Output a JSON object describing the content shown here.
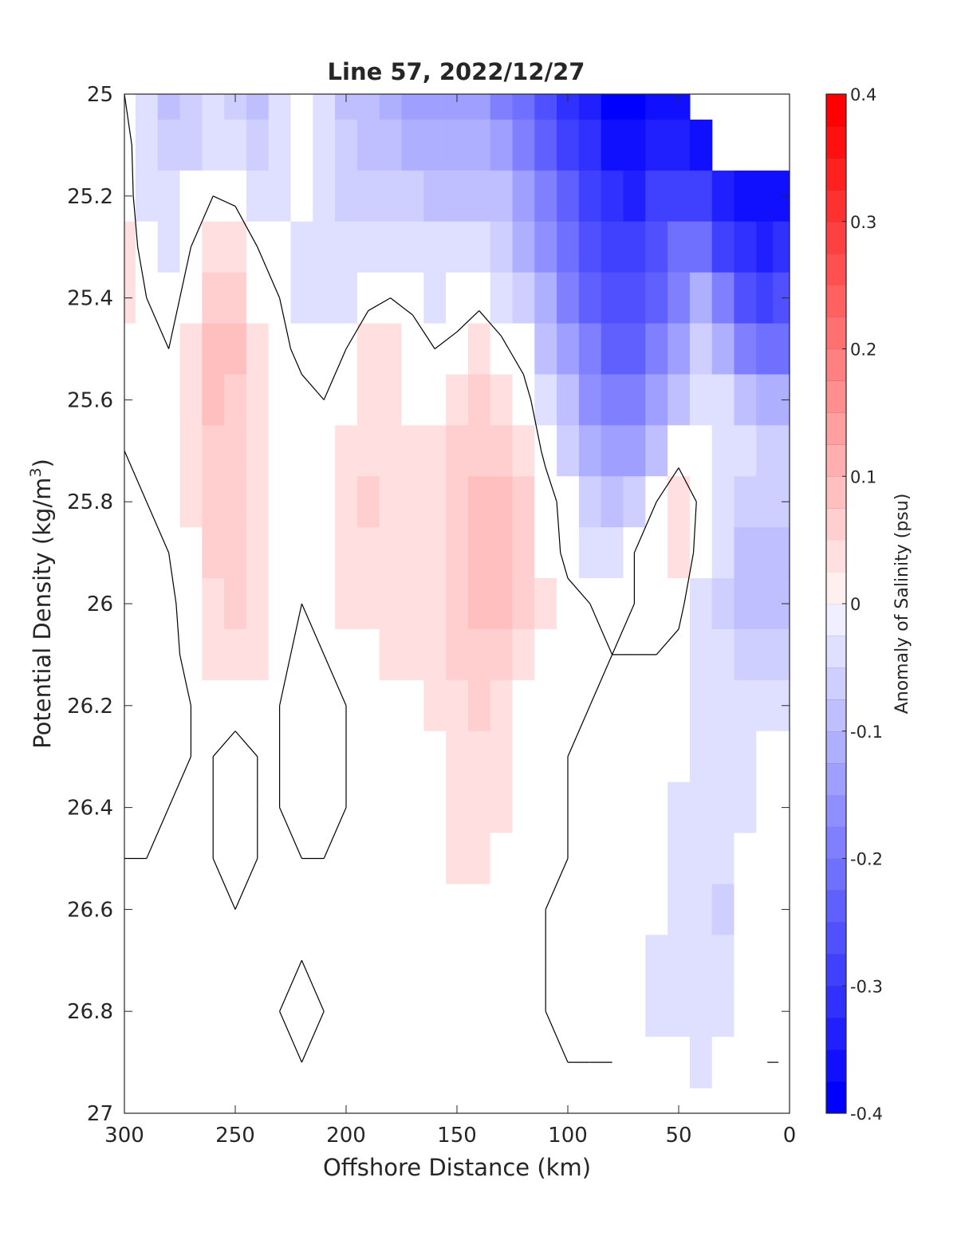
{
  "chart_data": {
    "type": "heatmap",
    "title": "Line 57, 2022/12/27",
    "xlabel": "Offshore Distance (km)",
    "ylabel_main": "Potential Density (kg/m",
    "ylabel_sup": "3",
    "ylabel_close": ")",
    "xlim": [
      300,
      0
    ],
    "ylim": [
      27,
      25
    ],
    "x_reversed": true,
    "y_reversed": true,
    "xticks": [
      300,
      250,
      200,
      150,
      100,
      50,
      0
    ],
    "xtick_labels": [
      "300",
      "250",
      "200",
      "150",
      "100",
      "50",
      "0"
    ],
    "yticks": [
      25,
      25.2,
      25.4,
      25.6,
      25.8,
      26,
      26.2,
      26.4,
      26.6,
      26.8,
      27
    ],
    "ytick_labels": [
      "25",
      "25.2",
      "25.4",
      "25.6",
      "25.8",
      "26",
      "26.2",
      "26.4",
      "26.6",
      "26.8",
      "27"
    ],
    "grid": false,
    "colorbar": {
      "label": "Anomaly of Salinity (psu)",
      "range": [
        -0.4,
        0.4
      ],
      "step": 0.025,
      "colormap": "blue-white-red",
      "ticks": [
        0.4,
        0.3,
        0.2,
        0.1,
        0,
        -0.1,
        -0.2,
        -0.3,
        -0.4
      ],
      "tick_labels": [
        "0.4",
        "0.3",
        "0.2",
        "0.1",
        "0",
        "-0.1",
        "-0.2",
        "-0.3",
        "-0.4"
      ]
    },
    "x": [
      300,
      290,
      280,
      270,
      260,
      250,
      240,
      230,
      220,
      210,
      200,
      190,
      180,
      170,
      160,
      150,
      140,
      130,
      120,
      110,
      100,
      90,
      80,
      70,
      60,
      50,
      40,
      30,
      20,
      10,
      5
    ],
    "y": [
      25,
      25.1,
      25.2,
      25.3,
      25.4,
      25.5,
      25.6,
      25.7,
      25.8,
      25.9,
      26,
      26.1,
      26.2,
      26.3,
      26.4,
      26.5,
      26.6,
      26.7,
      26.8,
      26.9
    ],
    "salinity_anomaly": [
      [
        0.0,
        -0.05,
        -0.08,
        -0.06,
        -0.05,
        -0.06,
        -0.08,
        -0.05,
        -0.02,
        -0.05,
        -0.08,
        -0.1,
        -0.12,
        -0.15,
        -0.15,
        -0.13,
        -0.15,
        -0.18,
        -0.22,
        -0.26,
        -0.31,
        -0.34,
        -0.38,
        -0.39,
        -0.37,
        -0.36,
        null,
        null,
        null,
        null,
        null
      ],
      [
        0.02,
        -0.04,
        -0.07,
        -0.06,
        -0.04,
        -0.05,
        -0.07,
        -0.04,
        -0.01,
        -0.04,
        -0.07,
        -0.09,
        -0.1,
        -0.12,
        -0.12,
        -0.11,
        -0.12,
        -0.15,
        -0.19,
        -0.23,
        -0.28,
        -0.32,
        -0.36,
        -0.37,
        -0.35,
        -0.34,
        -0.36,
        null,
        null,
        null,
        null
      ],
      [
        0.02,
        -0.03,
        -0.05,
        -0.02,
        0.0,
        -0.01,
        -0.04,
        -0.03,
        -0.02,
        -0.04,
        -0.06,
        -0.06,
        -0.06,
        -0.07,
        -0.08,
        -0.08,
        -0.08,
        -0.1,
        -0.14,
        -0.19,
        -0.24,
        -0.28,
        -0.32,
        -0.33,
        -0.3,
        -0.28,
        -0.3,
        -0.33,
        -0.36,
        -0.37,
        -0.36
      ],
      [
        0.03,
        -0.02,
        -0.04,
        0.0,
        0.03,
        0.04,
        0.0,
        -0.01,
        -0.04,
        -0.05,
        -0.05,
        -0.04,
        -0.04,
        -0.04,
        -0.05,
        -0.05,
        -0.05,
        -0.07,
        -0.11,
        -0.16,
        -0.21,
        -0.26,
        -0.29,
        -0.3,
        -0.26,
        -0.22,
        -0.22,
        -0.28,
        -0.32,
        -0.33,
        -0.32
      ],
      [
        0.03,
        0.0,
        -0.02,
        0.02,
        0.06,
        0.06,
        0.02,
        0.0,
        -0.03,
        -0.04,
        -0.03,
        -0.01,
        0.0,
        -0.01,
        -0.03,
        -0.02,
        -0.01,
        -0.03,
        -0.07,
        -0.12,
        -0.18,
        -0.23,
        -0.26,
        -0.27,
        -0.23,
        -0.18,
        -0.12,
        -0.2,
        -0.26,
        -0.28,
        -0.27
      ],
      [
        0.02,
        0.01,
        0.0,
        0.03,
        0.08,
        0.08,
        0.04,
        0.01,
        -0.01,
        -0.02,
        0.0,
        0.03,
        0.03,
        0.02,
        0.0,
        0.01,
        0.03,
        0.01,
        -0.02,
        -0.08,
        -0.15,
        -0.2,
        -0.23,
        -0.24,
        -0.2,
        -0.14,
        -0.07,
        -0.12,
        -0.18,
        -0.22,
        -0.21
      ],
      [
        0.02,
        0.01,
        0.01,
        0.04,
        0.08,
        0.07,
        0.04,
        0.02,
        0.01,
        0.0,
        0.02,
        0.04,
        0.03,
        0.02,
        0.02,
        0.04,
        0.06,
        0.04,
        0.02,
        -0.04,
        -0.1,
        -0.16,
        -0.19,
        -0.2,
        -0.15,
        -0.08,
        -0.03,
        -0.04,
        -0.08,
        -0.12,
        -0.12
      ],
      [
        0.0,
        0.0,
        0.01,
        0.04,
        0.07,
        0.07,
        0.04,
        0.02,
        0.0,
        0.01,
        0.03,
        0.04,
        0.04,
        0.03,
        0.03,
        0.05,
        0.07,
        0.06,
        0.04,
        -0.01,
        -0.06,
        -0.11,
        -0.14,
        -0.14,
        -0.08,
        -0.02,
        -0.01,
        -0.03,
        -0.05,
        -0.07,
        -0.07
      ],
      [
        -0.01,
        0.0,
        0.01,
        0.03,
        0.06,
        0.06,
        0.04,
        0.02,
        0.0,
        0.02,
        0.04,
        0.05,
        0.04,
        0.03,
        0.04,
        0.06,
        0.08,
        0.08,
        0.06,
        0.02,
        -0.02,
        -0.06,
        -0.08,
        -0.06,
        0.0,
        0.04,
        -0.01,
        -0.04,
        -0.06,
        -0.07,
        -0.06
      ],
      [
        -0.01,
        -0.01,
        0.0,
        0.02,
        0.05,
        0.06,
        0.04,
        0.02,
        0.0,
        0.02,
        0.04,
        0.04,
        0.04,
        0.03,
        0.04,
        0.06,
        0.08,
        0.09,
        0.06,
        0.02,
        -0.01,
        -0.03,
        -0.03,
        0.0,
        0.02,
        0.04,
        -0.02,
        -0.05,
        -0.08,
        -0.09,
        -0.08
      ],
      [
        -0.01,
        -0.01,
        -0.01,
        0.02,
        0.04,
        0.05,
        0.04,
        0.01,
        0.0,
        0.01,
        0.03,
        0.04,
        0.03,
        0.03,
        0.04,
        0.06,
        0.08,
        0.08,
        0.06,
        0.03,
        0.01,
        0.0,
        -0.01,
        0.0,
        0.01,
        0.01,
        -0.03,
        -0.06,
        -0.09,
        -0.1,
        -0.09
      ],
      [
        -0.01,
        -0.01,
        -0.01,
        0.01,
        0.03,
        0.04,
        0.03,
        0.01,
        -0.01,
        0.0,
        0.01,
        0.02,
        0.03,
        0.03,
        0.04,
        0.06,
        0.07,
        0.06,
        0.04,
        0.01,
        0.0,
        0.0,
        0.0,
        0.0,
        0.0,
        -0.01,
        -0.03,
        -0.05,
        -0.07,
        -0.07,
        -0.06
      ],
      [
        -0.01,
        -0.01,
        -0.01,
        0.0,
        0.02,
        0.01,
        0.01,
        0.0,
        -0.01,
        -0.01,
        0.0,
        0.01,
        0.02,
        0.02,
        0.03,
        0.04,
        0.05,
        0.04,
        0.02,
        0.01,
        0.0,
        0.0,
        -0.01,
        -0.01,
        -0.01,
        -0.01,
        -0.03,
        -0.04,
        -0.05,
        -0.05,
        -0.04
      ],
      [
        -0.01,
        -0.01,
        -0.01,
        0.0,
        0.0,
        -0.01,
        0.0,
        0.0,
        -0.01,
        -0.01,
        0.0,
        0.01,
        0.01,
        0.01,
        0.02,
        0.03,
        0.04,
        0.03,
        0.01,
        0.0,
        0.0,
        -0.01,
        -0.01,
        -0.01,
        -0.01,
        -0.02,
        -0.03,
        -0.03,
        -0.03,
        -0.02,
        -0.02
      ],
      [
        -0.01,
        -0.01,
        0.0,
        0.0,
        0.0,
        -0.02,
        0.0,
        0.0,
        -0.01,
        -0.01,
        0.0,
        0.0,
        0.0,
        0.01,
        0.01,
        0.03,
        0.04,
        0.03,
        0.01,
        0.0,
        0.0,
        -0.01,
        -0.01,
        -0.01,
        -0.01,
        -0.03,
        -0.04,
        -0.04,
        -0.03,
        -0.02,
        -0.01
      ],
      [
        0.0,
        0.0,
        0.0,
        0.0,
        0.0,
        -0.01,
        0.0,
        0.0,
        0.0,
        0.0,
        0.0,
        0.0,
        0.0,
        0.01,
        0.01,
        0.03,
        0.03,
        0.02,
        0.01,
        0.0,
        0.0,
        -0.01,
        -0.01,
        -0.01,
        -0.02,
        -0.04,
        -0.05,
        -0.04,
        -0.02,
        -0.01,
        -0.01
      ],
      [
        0.0,
        0.0,
        0.0,
        0.0,
        0.0,
        0.0,
        0.0,
        0.0,
        0.0,
        0.0,
        0.0,
        0.0,
        0.0,
        0.0,
        0.01,
        0.01,
        0.01,
        0.01,
        0.0,
        0.0,
        -0.01,
        -0.01,
        -0.01,
        -0.01,
        -0.02,
        -0.04,
        -0.05,
        -0.06,
        -0.02,
        -0.01,
        -0.01
      ],
      [
        0.01,
        0.0,
        0.0,
        0.01,
        0.0,
        0.0,
        0.0,
        0.0,
        0.0,
        0.0,
        0.0,
        0.0,
        0.0,
        0.0,
        0.0,
        0.0,
        0.0,
        0.0,
        0.0,
        0.0,
        -0.01,
        -0.01,
        -0.01,
        -0.02,
        -0.03,
        -0.04,
        -0.05,
        -0.05,
        -0.02,
        -0.01,
        -0.01
      ],
      [
        0.02,
        0.01,
        0.0,
        0.0,
        0.0,
        0.0,
        0.0,
        0.0,
        -0.01,
        0.0,
        0.0,
        0.0,
        0.0,
        0.02,
        0.02,
        0.0,
        0.0,
        0.0,
        0.0,
        0.0,
        -0.01,
        -0.01,
        -0.01,
        -0.02,
        -0.03,
        -0.03,
        -0.04,
        -0.03,
        -0.01,
        -0.01,
        -0.01
      ],
      [
        0.02,
        0.01,
        0.0,
        0.0,
        0.0,
        0.0,
        0.0,
        0.0,
        0.0,
        0.0,
        0.0,
        0.0,
        0.0,
        0.02,
        0.02,
        0.0,
        0.0,
        0.0,
        0.0,
        0.0,
        0.0,
        0.0,
        0.0,
        -0.01,
        -0.02,
        -0.02,
        -0.03,
        -0.02,
        -0.01,
        0.0,
        0.0
      ]
    ]
  }
}
